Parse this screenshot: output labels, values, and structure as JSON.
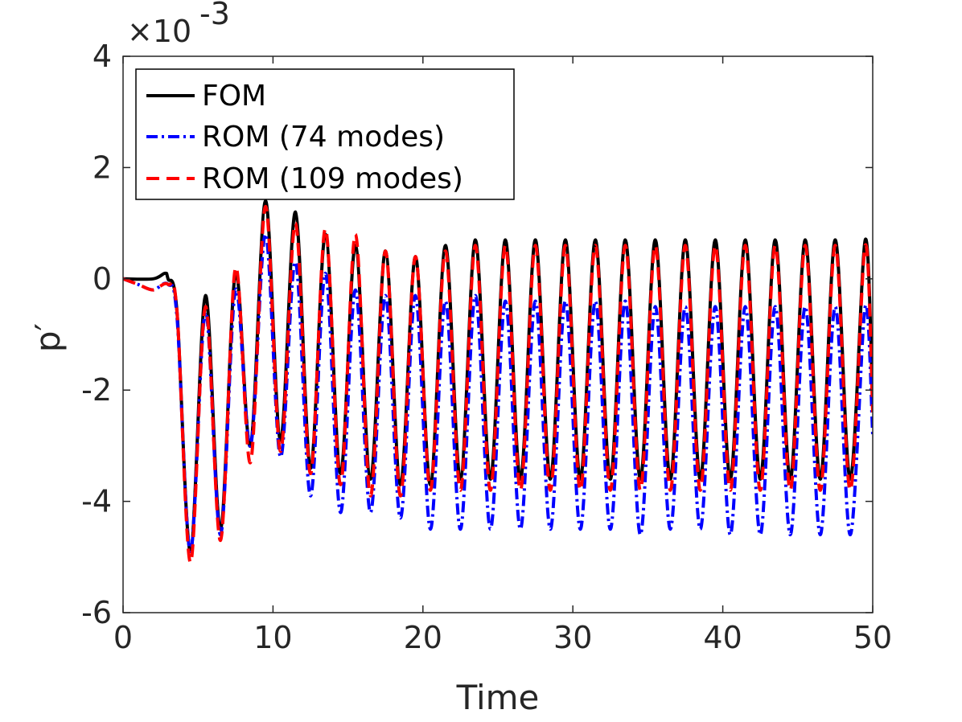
{
  "chart_data": {
    "type": "line",
    "xlabel": "Time",
    "ylabel": "p′",
    "xlim": [
      0,
      50
    ],
    "ylim": [
      -0.006,
      0.004
    ],
    "exponent_label": "×10",
    "exponent_power": "-3",
    "xticks": [
      0,
      10,
      20,
      30,
      40,
      50
    ],
    "yticks": [
      -0.006,
      -0.004,
      -0.002,
      0,
      0.002,
      0.004
    ],
    "xtick_labels": [
      "0",
      "10",
      "20",
      "30",
      "40",
      "50"
    ],
    "ytick_labels": [
      "-6",
      "-4",
      "-2",
      "0",
      "2",
      "4"
    ],
    "grid": false,
    "legend_position": "top-left",
    "series": [
      {
        "name": "FOM",
        "color": "#000000",
        "style": "solid",
        "x": [
          0.0,
          2.0,
          2.8,
          3.0,
          3.6,
          4.5,
          5.5,
          6.5,
          7.5,
          8.5,
          9.5,
          10.5,
          11.5,
          12.5,
          13.5,
          14.5,
          15.5,
          16.5,
          17.5,
          18.5,
          19.5,
          20.5,
          21.5,
          22.5,
          23.5,
          24.5,
          25.5,
          26.5,
          27.5,
          28.5,
          29.5,
          30.5,
          31.5,
          32.5,
          33.5,
          34.5,
          35.5,
          36.5,
          37.5,
          38.5,
          39.5,
          40.5,
          41.5,
          42.5,
          43.5,
          44.5,
          45.5,
          46.5,
          47.5,
          48.5,
          49.5,
          50.0
        ],
        "y": [
          0.0,
          0.0,
          0.0001,
          0.0,
          -0.0006,
          -0.0049,
          -0.0003,
          -0.0045,
          0.0001,
          -0.003,
          0.0014,
          -0.0029,
          0.0012,
          -0.0034,
          0.0008,
          -0.0035,
          0.0006,
          -0.0036,
          0.0005,
          -0.0037,
          0.0004,
          -0.0037,
          0.0006,
          -0.0036,
          0.0007,
          -0.0036,
          0.0007,
          -0.0036,
          0.0007,
          -0.0036,
          0.0007,
          -0.0036,
          0.0007,
          -0.0036,
          0.0007,
          -0.0036,
          0.0007,
          -0.0036,
          0.0007,
          -0.0036,
          0.0007,
          -0.0036,
          0.0007,
          -0.0036,
          0.0007,
          -0.0036,
          0.0007,
          -0.0036,
          0.0007,
          -0.0036,
          0.0007,
          -0.0022
        ]
      },
      {
        "name": "ROM (74 modes)",
        "color": "#0000ff",
        "style": "dashdot",
        "x": [
          0.0,
          1.0,
          2.0,
          3.0,
          3.6,
          4.5,
          5.5,
          6.5,
          7.5,
          8.5,
          9.5,
          10.5,
          11.5,
          12.5,
          13.5,
          14.5,
          15.5,
          16.5,
          17.5,
          18.5,
          19.5,
          20.5,
          21.5,
          22.5,
          23.5,
          24.5,
          25.5,
          26.5,
          27.5,
          28.5,
          29.5,
          30.5,
          31.5,
          32.5,
          33.5,
          34.5,
          35.5,
          36.5,
          37.5,
          38.5,
          39.5,
          40.5,
          41.5,
          42.5,
          43.5,
          44.5,
          45.5,
          46.5,
          47.5,
          48.5,
          49.5,
          50.0
        ],
        "y": [
          0.0,
          -0.0001,
          -0.0002,
          -0.0001,
          -0.0007,
          -0.0049,
          -0.0006,
          -0.0046,
          -0.0002,
          -0.003,
          0.0008,
          -0.0032,
          0.0003,
          -0.0039,
          0.0001,
          -0.0042,
          -0.0002,
          -0.0042,
          -0.0003,
          -0.0043,
          -0.0003,
          -0.0045,
          -0.0004,
          -0.0045,
          -0.0003,
          -0.0045,
          -0.0004,
          -0.0045,
          -0.0004,
          -0.0045,
          -0.0004,
          -0.0045,
          -0.0004,
          -0.0045,
          -0.0004,
          -0.0046,
          -0.0005,
          -0.0045,
          -0.0005,
          -0.0045,
          -0.0005,
          -0.0046,
          -0.0005,
          -0.0046,
          -0.0005,
          -0.0046,
          -0.0005,
          -0.0046,
          -0.0005,
          -0.0046,
          -0.0005,
          -0.0028
        ]
      },
      {
        "name": "ROM (109 modes)",
        "color": "#ff0000",
        "style": "dashed",
        "x": [
          0.0,
          1.0,
          2.0,
          3.0,
          3.6,
          4.5,
          5.5,
          6.5,
          7.5,
          8.5,
          9.5,
          10.5,
          11.5,
          12.5,
          13.5,
          14.5,
          15.5,
          16.5,
          17.5,
          18.5,
          19.5,
          20.5,
          21.5,
          22.5,
          23.5,
          24.5,
          25.5,
          26.5,
          27.5,
          28.5,
          29.5,
          30.5,
          31.5,
          32.5,
          33.5,
          34.5,
          35.5,
          36.5,
          37.5,
          38.5,
          39.5,
          40.5,
          41.5,
          42.5,
          43.5,
          44.5,
          45.5,
          46.5,
          47.5,
          48.5,
          49.5,
          50.0
        ],
        "y": [
          0.0,
          -0.0001,
          -0.0002,
          -0.0001,
          -0.0006,
          -0.0051,
          -0.0005,
          -0.0047,
          0.0002,
          -0.0033,
          0.0013,
          -0.0031,
          0.001,
          -0.0035,
          0.0009,
          -0.0037,
          0.0008,
          -0.0039,
          0.0005,
          -0.0039,
          0.0004,
          -0.0038,
          0.0005,
          -0.0038,
          0.0006,
          -0.0038,
          0.0006,
          -0.0038,
          0.0006,
          -0.0038,
          0.0006,
          -0.0038,
          0.0006,
          -0.0038,
          0.0006,
          -0.0038,
          0.0006,
          -0.0038,
          0.0006,
          -0.0038,
          0.0006,
          -0.0038,
          0.0006,
          -0.0038,
          0.0006,
          -0.0038,
          0.0006,
          -0.0038,
          0.0006,
          -0.0038,
          0.0006,
          -0.0024
        ]
      }
    ]
  }
}
